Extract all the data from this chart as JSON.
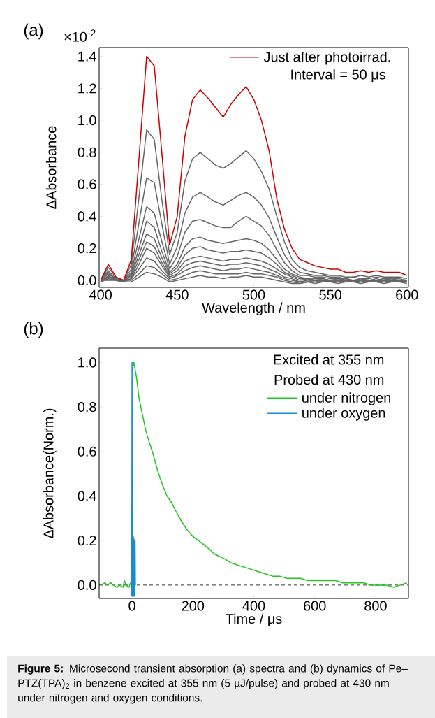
{
  "chart_data": [
    {
      "type": "line",
      "title": "(a)",
      "xlabel": "Wavelength / nm",
      "ylabel": "ΔAbsorbance",
      "xlim": [
        399,
        601
      ],
      "ylim": [
        -0.044,
        1.455
      ],
      "xticks": [
        400,
        450,
        500,
        550,
        600
      ],
      "yticks": [
        {
          "value": 0,
          "label": "0.0"
        },
        {
          "value": 0.2,
          "label": "0.2"
        },
        {
          "value": 0.4,
          "label": "0.4"
        },
        {
          "value": 0.6,
          "label": "0.6"
        },
        {
          "value": 0.8,
          "label": "0.8"
        },
        {
          "value": 1.0,
          "label": "1.0"
        },
        {
          "value": 1.2,
          "label": "1.2"
        },
        {
          "value": 1.4,
          "label": "1.4"
        }
      ],
      "legend": "top right",
      "annotations": [
        "Interval = 50 μs",
        "×10$^{-2}$"
      ],
      "x": [
        400,
        405,
        410,
        415,
        420,
        425,
        430,
        435,
        440,
        445,
        450,
        455,
        460,
        465,
        470,
        475,
        480,
        485,
        490,
        495,
        500,
        505,
        510,
        515,
        520,
        525,
        530,
        535,
        540,
        545,
        550,
        555,
        560,
        565,
        570,
        575,
        580,
        585,
        590,
        595,
        600
      ],
      "series": [
        {
          "color": "#666666",
          "values": [
            0.0,
            0.08,
            0.02,
            0.0,
            0.1,
            0.52,
            0.94,
            0.88,
            0.5,
            0.16,
            0.3,
            0.62,
            0.76,
            0.8,
            0.76,
            0.72,
            0.7,
            0.73,
            0.77,
            0.81,
            0.76,
            0.68,
            0.57,
            0.4,
            0.24,
            0.13,
            0.08,
            0.06,
            0.05,
            0.04,
            0.03,
            0.03,
            0.02,
            0.02,
            0.03,
            0.02,
            0.03,
            0.02,
            0.02,
            0.02,
            0.01
          ]
        },
        {
          "color": "#666666",
          "values": [
            0.0,
            0.06,
            0.01,
            0.0,
            0.07,
            0.36,
            0.64,
            0.61,
            0.35,
            0.1,
            0.21,
            0.42,
            0.52,
            0.55,
            0.52,
            0.49,
            0.47,
            0.5,
            0.53,
            0.55,
            0.52,
            0.47,
            0.39,
            0.27,
            0.16,
            0.09,
            0.05,
            0.04,
            0.03,
            0.03,
            0.02,
            0.02,
            0.01,
            0.02,
            0.01,
            0.01,
            0.02,
            0.01,
            0.01,
            0.01,
            0.0
          ]
        },
        {
          "color": "#666666",
          "values": [
            -0.01,
            0.05,
            0.0,
            0.0,
            0.05,
            0.26,
            0.46,
            0.42,
            0.24,
            0.07,
            0.15,
            0.3,
            0.37,
            0.38,
            0.36,
            0.34,
            0.33,
            0.33,
            0.37,
            0.4,
            0.37,
            0.34,
            0.28,
            0.19,
            0.11,
            0.06,
            0.03,
            0.03,
            0.02,
            0.02,
            0.01,
            0.01,
            0.01,
            0.0,
            0.01,
            0.0,
            0.01,
            0.0,
            0.01,
            0.0,
            0.0
          ]
        },
        {
          "color": "#666666",
          "values": [
            0.0,
            0.04,
            0.01,
            -0.01,
            0.04,
            0.2,
            0.37,
            0.33,
            0.18,
            0.05,
            0.1,
            0.21,
            0.26,
            0.27,
            0.25,
            0.24,
            0.23,
            0.24,
            0.25,
            0.26,
            0.25,
            0.23,
            0.19,
            0.13,
            0.07,
            0.04,
            0.02,
            0.01,
            0.01,
            0.01,
            0.0,
            0.01,
            0.0,
            0.0,
            0.01,
            0.0,
            0.0,
            0.01,
            0.0,
            0.0,
            -0.01
          ]
        },
        {
          "color": "#666666",
          "values": [
            -0.01,
            0.03,
            0.0,
            0.0,
            0.03,
            0.16,
            0.29,
            0.26,
            0.14,
            0.04,
            0.08,
            0.16,
            0.2,
            0.21,
            0.19,
            0.18,
            0.17,
            0.18,
            0.18,
            0.19,
            0.18,
            0.17,
            0.14,
            0.1,
            0.05,
            0.03,
            0.01,
            0.01,
            0.0,
            0.01,
            0.0,
            0.0,
            0.01,
            0.0,
            0.0,
            -0.01,
            0.0,
            0.0,
            0.0,
            -0.01,
            0.0
          ]
        },
        {
          "color": "#666666",
          "values": [
            0.0,
            0.02,
            0.01,
            0.0,
            0.02,
            0.13,
            0.24,
            0.21,
            0.11,
            0.03,
            0.06,
            0.12,
            0.14,
            0.15,
            0.14,
            0.13,
            0.12,
            0.13,
            0.13,
            0.14,
            0.13,
            0.12,
            0.1,
            0.07,
            0.04,
            0.02,
            0.0,
            0.01,
            0.0,
            0.0,
            -0.01,
            0.0,
            0.0,
            -0.01,
            0.0,
            0.0,
            -0.01,
            0.0,
            0.0,
            0.0,
            -0.01
          ]
        },
        {
          "color": "#666666",
          "values": [
            -0.01,
            0.02,
            0.0,
            -0.01,
            0.01,
            0.1,
            0.2,
            0.17,
            0.09,
            0.02,
            0.04,
            0.09,
            0.11,
            0.12,
            0.11,
            0.1,
            0.09,
            0.1,
            0.1,
            0.11,
            0.1,
            0.09,
            0.07,
            0.05,
            0.02,
            0.01,
            -0.01,
            0.0,
            0.0,
            -0.01,
            0.0,
            -0.01,
            0.0,
            0.0,
            -0.01,
            0.0,
            0.0,
            -0.01,
            0.0,
            -0.01,
            0.0
          ]
        },
        {
          "color": "#666666",
          "values": [
            0.0,
            0.01,
            0.0,
            0.0,
            0.01,
            0.07,
            0.14,
            0.12,
            0.06,
            0.01,
            0.03,
            0.06,
            0.08,
            0.09,
            0.08,
            0.07,
            0.06,
            0.07,
            0.07,
            0.08,
            0.07,
            0.06,
            0.05,
            0.03,
            0.01,
            0.0,
            -0.01,
            -0.01,
            0.0,
            0.0,
            -0.01,
            0.0,
            -0.01,
            0.0,
            0.0,
            -0.01,
            0.0,
            0.0,
            -0.01,
            0.0,
            0.0
          ]
        },
        {
          "color": "#666666",
          "values": [
            -0.01,
            0.01,
            0.0,
            0.0,
            0.0,
            0.04,
            0.09,
            0.08,
            0.04,
            0.0,
            0.01,
            0.03,
            0.05,
            0.06,
            0.05,
            0.04,
            0.04,
            0.04,
            0.04,
            0.05,
            0.04,
            0.04,
            0.03,
            0.02,
            0.0,
            -0.01,
            -0.02,
            -0.01,
            -0.01,
            0.0,
            -0.01,
            -0.01,
            0.0,
            -0.01,
            0.0,
            -0.01,
            -0.01,
            0.0,
            -0.01,
            0.0,
            -0.01
          ]
        },
        {
          "color": "#666666",
          "values": [
            0.0,
            0.0,
            0.0,
            -0.01,
            -0.01,
            0.02,
            0.05,
            0.04,
            0.02,
            -0.01,
            0.0,
            0.01,
            0.02,
            0.03,
            0.02,
            0.02,
            0.01,
            0.02,
            0.02,
            0.03,
            0.02,
            0.02,
            0.01,
            0.0,
            -0.01,
            -0.02,
            -0.02,
            -0.01,
            -0.02,
            -0.01,
            -0.01,
            -0.02,
            -0.01,
            -0.01,
            -0.02,
            -0.01,
            -0.01,
            -0.02,
            -0.01,
            -0.01,
            -0.02
          ]
        },
        {
          "name": "Just after photoirrad.",
          "color": "#cc0000",
          "values": [
            0.0,
            0.1,
            0.02,
            0.0,
            0.13,
            0.76,
            1.4,
            1.34,
            0.79,
            0.22,
            0.4,
            0.9,
            1.13,
            1.19,
            1.14,
            1.08,
            1.02,
            1.1,
            1.16,
            1.21,
            1.13,
            1.0,
            0.81,
            0.51,
            0.32,
            0.2,
            0.13,
            0.11,
            0.09,
            0.08,
            0.07,
            0.07,
            0.05,
            0.05,
            0.06,
            0.05,
            0.06,
            0.05,
            0.05,
            0.05,
            0.03
          ]
        }
      ]
    },
    {
      "type": "line",
      "title": "(b)",
      "xlabel": "Time / μs",
      "ylabel": "ΔAbsorbance(Norm.)",
      "xlim": [
        -108,
        908
      ],
      "ylim": [
        -0.06,
        1.064
      ],
      "xticks": [
        0,
        200,
        400,
        600,
        800
      ],
      "yticks": [
        {
          "value": 0,
          "label": "0.0"
        },
        {
          "value": 0.2,
          "label": "0.2"
        },
        {
          "value": 0.4,
          "label": "0.4"
        },
        {
          "value": 0.6,
          "label": "0.6"
        },
        {
          "value": 0.8,
          "label": "0.8"
        },
        {
          "value": 1.0,
          "label": "1.0"
        }
      ],
      "legend": "top right",
      "ref_lines": [
        {
          "axis": "y",
          "value": 0,
          "color": "#000000",
          "line_style": "dashed"
        }
      ],
      "annotations": [
        "Excited at 355 nm",
        "Probed at 430 nm",
        "**Figure 5:** Microsecond transient absorption (a) spectra and (b) dynamics of Pe–PTZ(TPA)$_{2}$ in benzene excited at 355 nm (5 µJ/pulse) and probed at 430 nm under nitrogen and oxygen conditions."
      ],
      "series": [
        {
          "name": "under nitrogen",
          "color": "#1ec81e",
          "x": [
            -100,
            -90,
            -80,
            -70,
            -60,
            -50,
            -40,
            -30,
            -25,
            -20,
            -10,
            -5,
            0,
            3,
            6,
            15,
            23,
            35,
            46,
            57,
            69,
            85,
            100,
            115,
            130,
            145,
            161,
            180,
            199,
            218,
            238,
            255,
            270,
            285,
            301,
            325,
            347,
            370,
            393,
            415,
            439,
            462,
            485,
            508,
            531,
            554,
            577,
            600,
            623,
            646,
            669,
            692,
            715,
            738,
            761,
            784,
            807,
            835,
            860,
            880,
            903
          ],
          "values": [
            0.0,
            0.01,
            0.0,
            0.01,
            0.0,
            -0.01,
            0.0,
            -0.01,
            0.02,
            0.0,
            -0.01,
            0.01,
            0.0,
            0.98,
            1.0,
            0.93,
            0.84,
            0.76,
            0.69,
            0.64,
            0.59,
            0.51,
            0.45,
            0.4,
            0.37,
            0.33,
            0.29,
            0.25,
            0.22,
            0.2,
            0.18,
            0.16,
            0.14,
            0.13,
            0.12,
            0.1,
            0.09,
            0.08,
            0.07,
            0.06,
            0.05,
            0.04,
            0.04,
            0.03,
            0.03,
            0.03,
            0.02,
            0.02,
            0.02,
            0.02,
            0.02,
            0.01,
            0.01,
            0.01,
            0.01,
            0.0,
            0.0,
            0.0,
            -0.01,
            0.0,
            0.01
          ]
        },
        {
          "name": "under oxygen",
          "color": "#1a8ad4",
          "x": [
            -1,
            0,
            1,
            2,
            3,
            4,
            5,
            6,
            7,
            8,
            9,
            10,
            11
          ],
          "values": [
            -0.05,
            1.0,
            -0.05,
            0.22,
            -0.05,
            0.22,
            -0.05,
            0.21,
            -0.05,
            0.2,
            -0.05,
            0.2,
            0.0
          ]
        }
      ]
    }
  ]
}
